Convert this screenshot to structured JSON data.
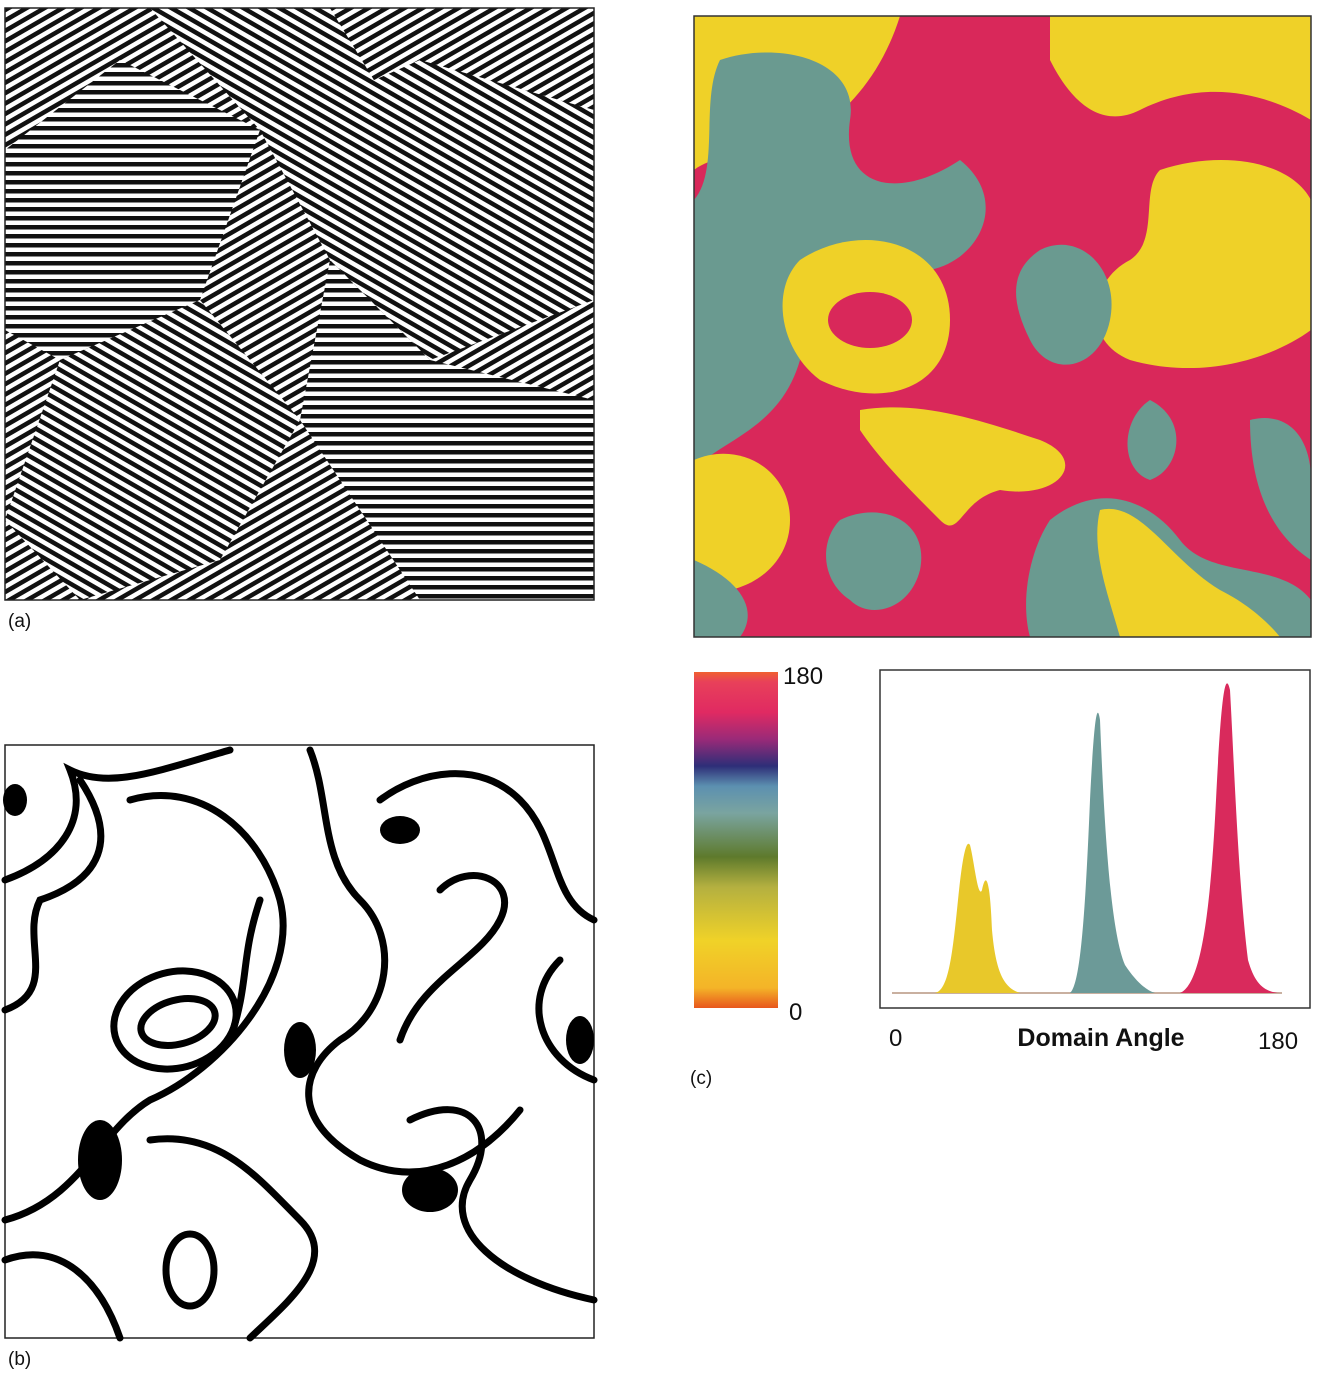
{
  "panels": {
    "a": {
      "label": "(a)"
    },
    "b": {
      "label": "(b)"
    },
    "c": {
      "label": "(c)",
      "colorbar": {
        "ticks": [
          180,
          0
        ]
      },
      "histogram": {
        "xlabel": "Domain Angle",
        "xticks": [
          0,
          180
        ]
      }
    }
  }
}
